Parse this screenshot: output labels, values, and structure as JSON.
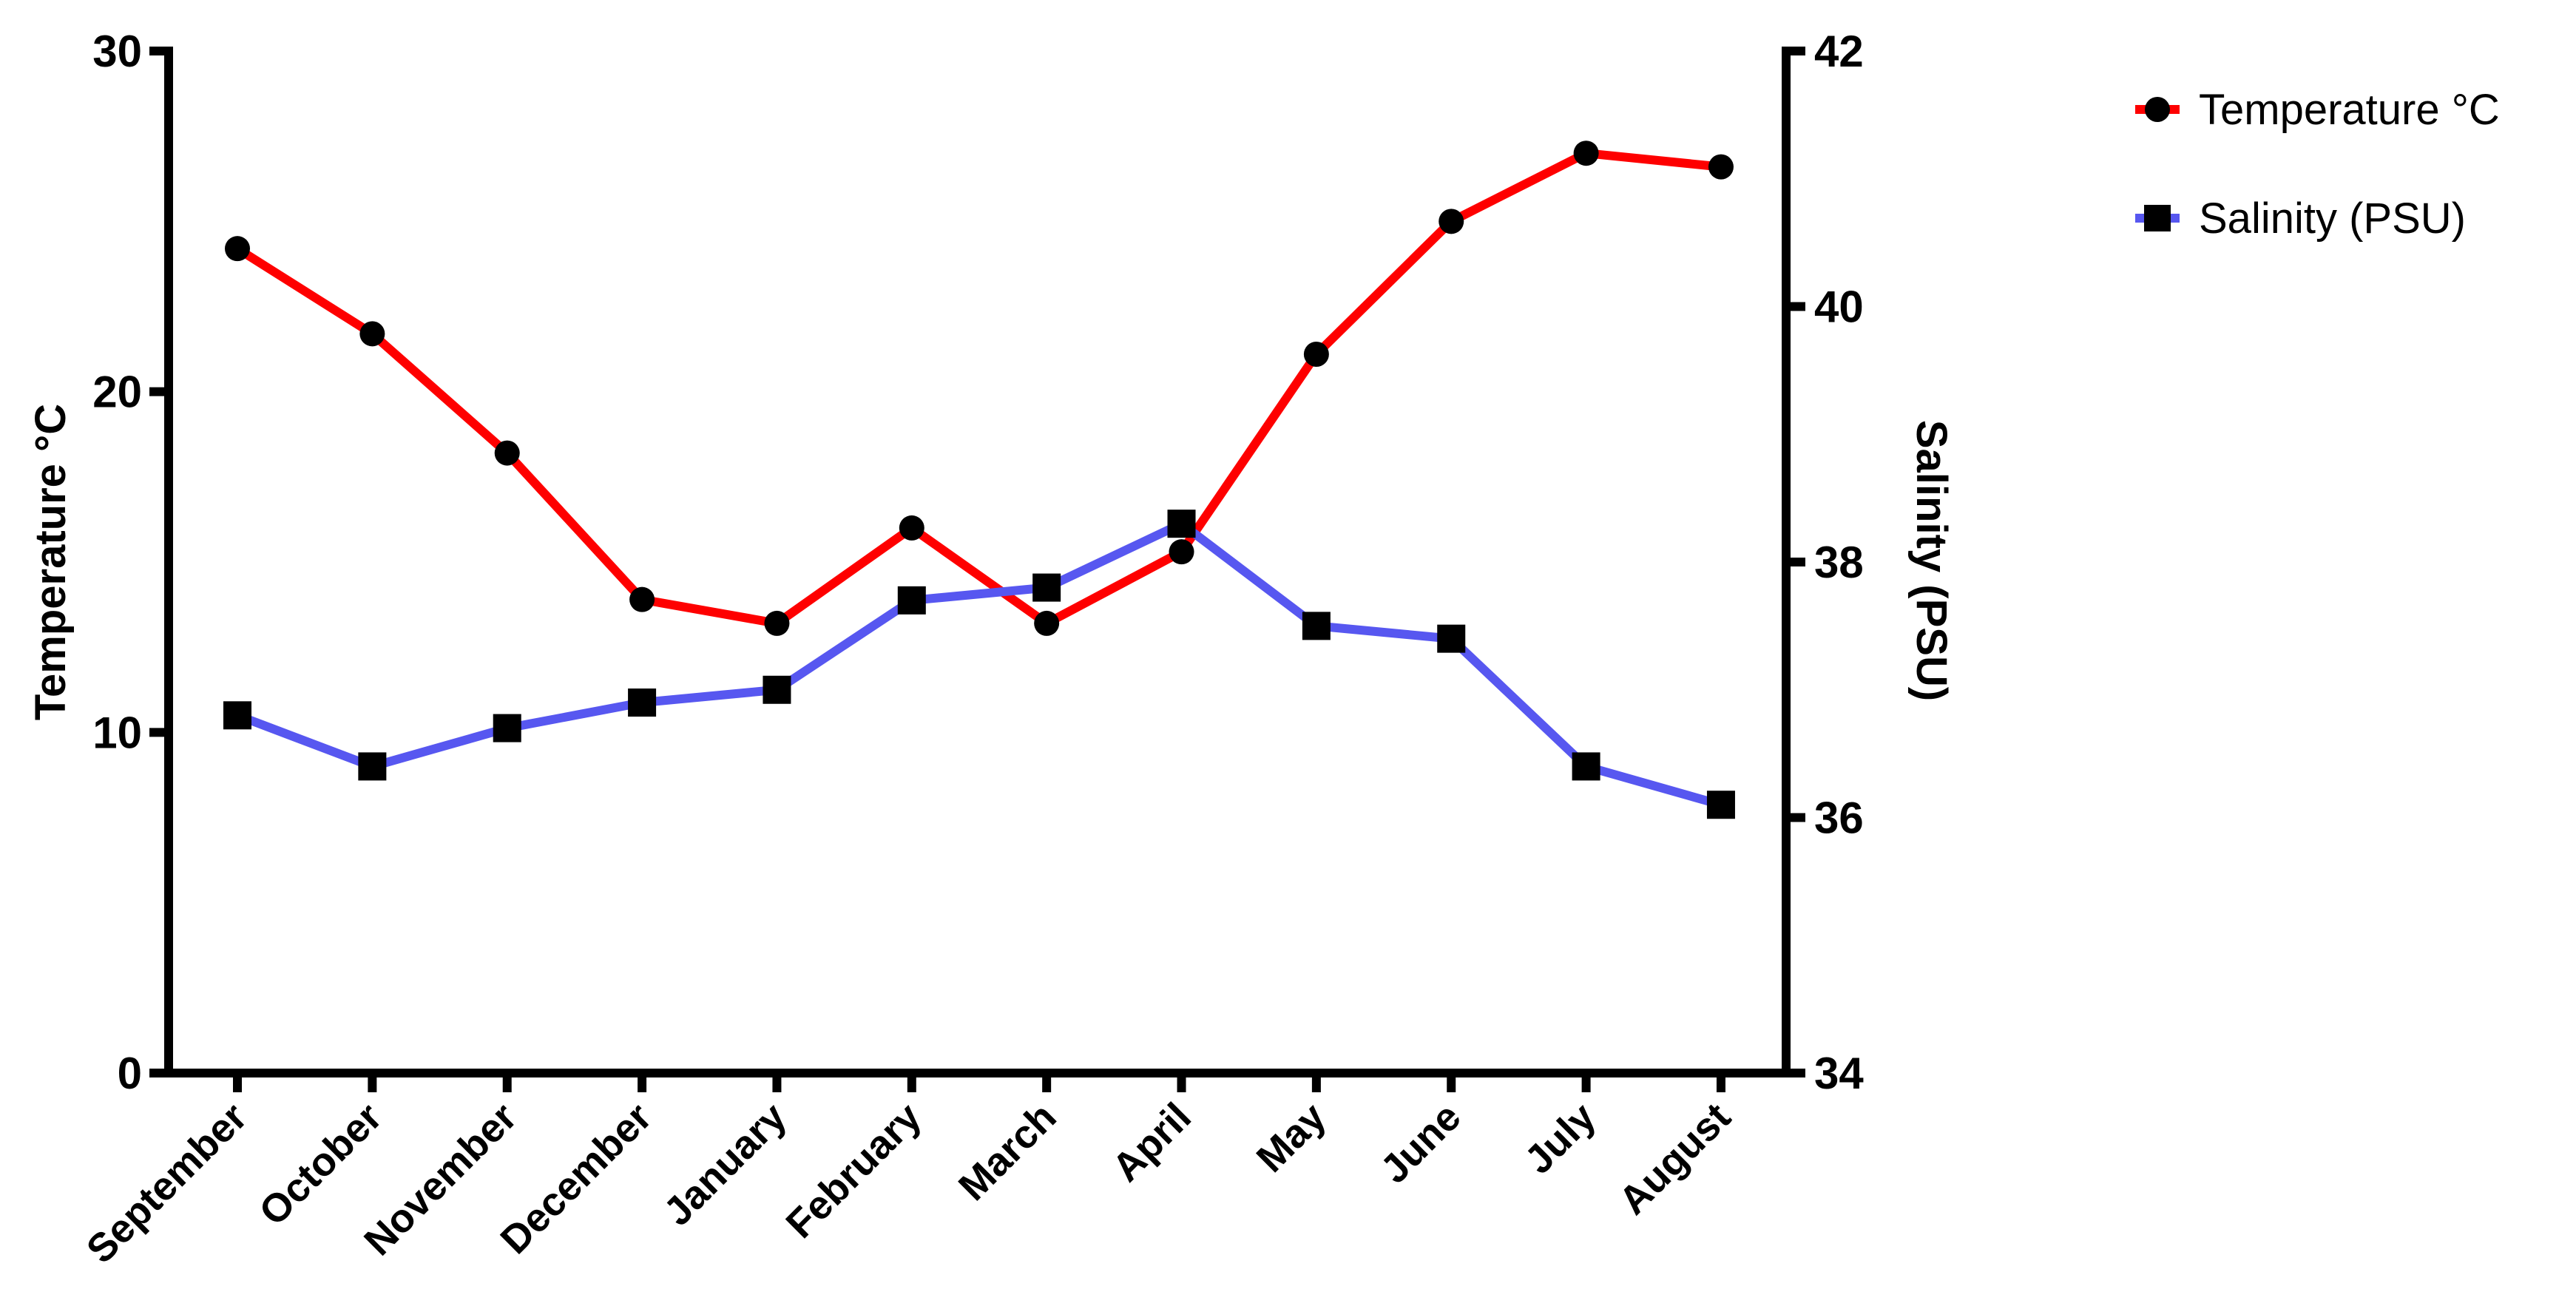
{
  "chart_data": {
    "type": "line",
    "title": "",
    "categories": [
      "September",
      "October",
      "November",
      "December",
      "January",
      "February",
      "March",
      "April",
      "May",
      "June",
      "July",
      "August"
    ],
    "series": [
      {
        "name": "Temperature °C",
        "axis": "left",
        "line_color": "#fe0000",
        "marker": "circle",
        "marker_color": "#000000",
        "values": [
          24.2,
          21.7,
          18.2,
          13.9,
          13.2,
          16.0,
          13.2,
          15.3,
          21.1,
          25.0,
          27.0,
          26.6
        ]
      },
      {
        "name": "Salinity (PSU)",
        "axis": "right",
        "line_color": "#5757f0",
        "marker": "square",
        "marker_color": "#000000",
        "values": [
          36.8,
          36.4,
          36.7,
          36.9,
          37.0,
          37.7,
          37.8,
          38.3,
          37.5,
          37.4,
          36.4,
          36.1
        ]
      }
    ],
    "left_axis": {
      "label": "Temperature °C",
      "min": 0,
      "max": 30,
      "ticks": [
        0,
        10,
        20,
        30
      ]
    },
    "right_axis": {
      "label": "Salinity (PSU)",
      "min": 34,
      "max": 42,
      "ticks": [
        34,
        36,
        38,
        40,
        42
      ]
    },
    "x_axis": {
      "tick_count": 12,
      "label_rotation_deg": -45
    },
    "grid": "off",
    "legend": {
      "position": "top-right",
      "items": [
        {
          "label": "Temperature °C",
          "swatch_line": "#fe0000",
          "swatch_marker": "circle",
          "swatch_marker_color": "#000000"
        },
        {
          "label": "Salinity (PSU)",
          "swatch_line": "#5757f0",
          "swatch_marker": "square",
          "swatch_marker_color": "#000000"
        }
      ]
    },
    "axis_color": "#000000",
    "background_color": "#ffffff"
  }
}
